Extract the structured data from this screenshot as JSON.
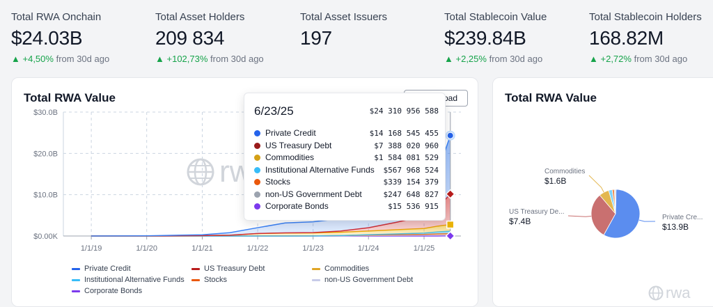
{
  "stats": [
    {
      "label": "Total RWA Onchain",
      "value": "$24.03B",
      "change": "+4,50%",
      "suffix": "from 30d ago"
    },
    {
      "label": "Total Asset Holders",
      "value": "209 834",
      "change": "+102,73%",
      "suffix": "from 30d ago"
    },
    {
      "label": "Total Asset Issuers",
      "value": "197",
      "change": "",
      "suffix": ""
    },
    {
      "label": "Total Stablecoin Value",
      "value": "$239.84B",
      "change": "+2,25%",
      "suffix": "from 30d ago"
    },
    {
      "label": "Total Stablecoin Holders",
      "value": "168.82M",
      "change": "+2,72%",
      "suffix": "from 30d ago"
    }
  ],
  "main_card": {
    "title": "Total RWA Value",
    "download_label": "oad",
    "watermark": "rwa"
  },
  "side_card": {
    "title": "Total RWA Value",
    "watermark": "rwa"
  },
  "tooltip": {
    "date": "6/23/25",
    "total": "$24 310 956 588",
    "rows": [
      {
        "name": "Private Credit",
        "value": "$14 168 545 455",
        "color": "#2563eb"
      },
      {
        "name": "US Treasury Debt",
        "value": "$7 388 020 960",
        "color": "#991b1b"
      },
      {
        "name": "Commodities",
        "value": "$1 584 081 529",
        "color": "#d4a017"
      },
      {
        "name": "Institutional Alternative Funds",
        "value": "$567 968 524",
        "color": "#38bdf8"
      },
      {
        "name": "Stocks",
        "value": "$339 154 379",
        "color": "#ea580c"
      },
      {
        "name": "non-US Government Debt",
        "value": "$247 648 827",
        "color": "#9ca3af"
      },
      {
        "name": "Corporate Bonds",
        "value": "$15 536 915",
        "color": "#7c3aed"
      }
    ]
  },
  "legend": [
    {
      "name": "Private Credit",
      "color": "#2563eb"
    },
    {
      "name": "US Treasury Debt",
      "color": "#b91c1c"
    },
    {
      "name": "Commodities",
      "color": "#e0a526"
    },
    {
      "name": "Institutional Alternative Funds",
      "color": "#38bdf8"
    },
    {
      "name": "Stocks",
      "color": "#ea580c"
    },
    {
      "name": "non-US Government Debt",
      "color": "#c7cbe8"
    },
    {
      "name": "Corporate Bonds",
      "color": "#7c3aed"
    }
  ],
  "chart_data": [
    {
      "type": "area",
      "title": "Total RWA Value",
      "y_ticks": [
        "$0.00K",
        "$10.0B",
        "$20.0B",
        "$30.0B"
      ],
      "x_ticks": [
        "1/1/19",
        "1/1/20",
        "1/1/21",
        "1/1/22",
        "1/1/23",
        "1/1/24",
        "1/1/25"
      ],
      "ylim": [
        0,
        30
      ],
      "stacked": true,
      "grid": true,
      "legend_position": "bottom",
      "x": [
        "1/1/19",
        "1/1/20",
        "1/1/21",
        "7/1/21",
        "1/1/22",
        "7/1/22",
        "1/1/23",
        "7/1/23",
        "1/1/24",
        "7/1/24",
        "1/1/25",
        "4/1/25",
        "6/23/25"
      ],
      "series": [
        {
          "name": "Private Credit",
          "values": [
            0.0,
            0.05,
            0.2,
            0.6,
            1.4,
            2.4,
            2.6,
            3.0,
            3.2,
            4.5,
            6.0,
            8.5,
            14.17
          ]
        },
        {
          "name": "US Treasury Debt",
          "values": [
            0.0,
            0.0,
            0.0,
            0.0,
            0.01,
            0.05,
            0.1,
            0.3,
            0.8,
            1.8,
            3.0,
            4.5,
            7.39
          ]
        },
        {
          "name": "Commodities",
          "values": [
            0.0,
            0.0,
            0.1,
            0.2,
            0.6,
            0.7,
            0.7,
            0.8,
            0.9,
            1.0,
            1.1,
            1.4,
            1.58
          ]
        },
        {
          "name": "Institutional Alternative Funds",
          "values": [
            0.0,
            0.0,
            0.0,
            0.0,
            0.0,
            0.0,
            0.0,
            0.0,
            0.1,
            0.2,
            0.3,
            0.45,
            0.57
          ]
        },
        {
          "name": "Stocks",
          "values": [
            0.0,
            0.0,
            0.0,
            0.0,
            0.0,
            0.01,
            0.02,
            0.05,
            0.1,
            0.15,
            0.2,
            0.3,
            0.34
          ]
        },
        {
          "name": "non-US Government Debt",
          "values": [
            0.0,
            0.0,
            0.0,
            0.0,
            0.0,
            0.0,
            0.01,
            0.05,
            0.1,
            0.15,
            0.2,
            0.23,
            0.25
          ]
        },
        {
          "name": "Corporate Bonds",
          "values": [
            0.0,
            0.0,
            0.0,
            0.0,
            0.0,
            0.0,
            0.0,
            0.0,
            0.01,
            0.01,
            0.01,
            0.01,
            0.02
          ]
        }
      ]
    },
    {
      "type": "pie",
      "title": "Total RWA Value",
      "slices": [
        {
          "name": "Private Credit",
          "label": "Private Cre...",
          "value": 13.9,
          "value_label": "$13.9B",
          "color": "#5b8def"
        },
        {
          "name": "US Treasury Debt",
          "label": "US Treasury De...",
          "value": 7.4,
          "value_label": "$7.4B",
          "color": "#c97070"
        },
        {
          "name": "Commodities",
          "label": "Commodities",
          "value": 1.6,
          "value_label": "$1.6B",
          "color": "#e3b74f"
        },
        {
          "name": "Institutional Alternative Funds",
          "value": 0.57,
          "color": "#7dd3fc"
        },
        {
          "name": "Stocks",
          "value": 0.34,
          "color": "#f08a4b"
        },
        {
          "name": "non-US Government Debt",
          "value": 0.25,
          "color": "#cbd5e1"
        },
        {
          "name": "Corporate Bonds",
          "value": 0.02,
          "color": "#8b5cf6"
        }
      ]
    }
  ]
}
